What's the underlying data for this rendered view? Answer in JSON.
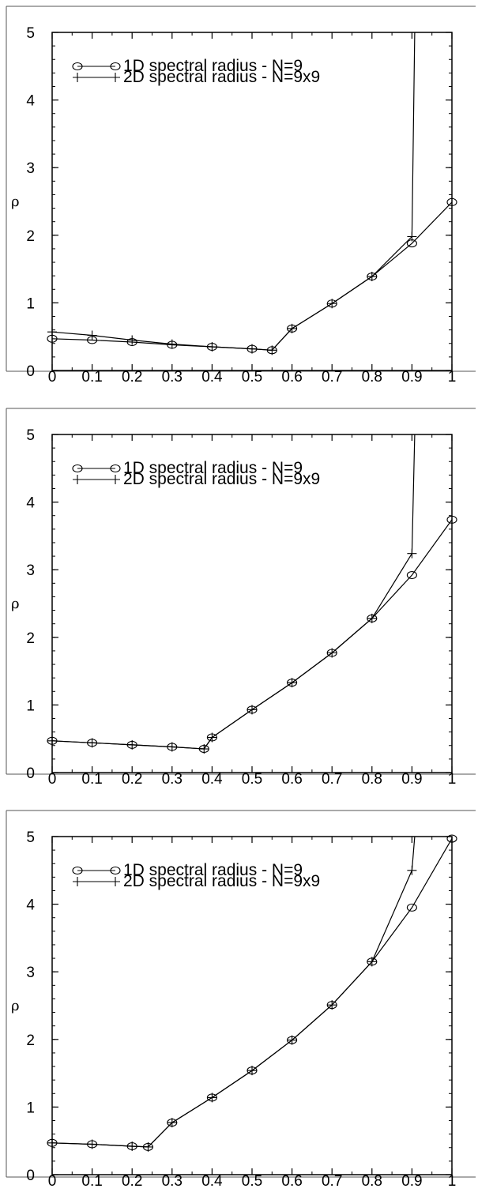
{
  "chart_data": [
    {
      "type": "line",
      "ylabel": "ρ",
      "xlim": [
        0,
        1
      ],
      "ylim": [
        0,
        5
      ],
      "xticks": [
        "0",
        "0.1",
        "0.2",
        "0.3",
        "0.4",
        "0.5",
        "0.6",
        "0.7",
        "0.8",
        "0.9",
        "1"
      ],
      "yticks": [
        "0",
        "1",
        "2",
        "3",
        "4",
        "5"
      ],
      "grid": false,
      "legend_position": "top-left",
      "series": [
        {
          "name": "1D spectral radius - N=9",
          "marker": "circle",
          "x": [
            0,
            0.1,
            0.2,
            0.3,
            0.4,
            0.5,
            0.55,
            0.6,
            0.7,
            0.8,
            0.9,
            1.0
          ],
          "y": [
            0.47,
            0.45,
            0.42,
            0.38,
            0.35,
            0.32,
            0.3,
            0.62,
            0.99,
            1.39,
            1.88,
            2.49
          ]
        },
        {
          "name": "2D spectral radius - N=9x9",
          "marker": "plus",
          "x": [
            0,
            0.1,
            0.2,
            0.3,
            0.4,
            0.5,
            0.55,
            0.6,
            0.7,
            0.8,
            0.9,
            0.907
          ],
          "y": [
            0.57,
            0.52,
            0.45,
            0.39,
            0.35,
            0.32,
            0.3,
            0.62,
            0.99,
            1.39,
            1.98,
            5.0
          ]
        }
      ]
    },
    {
      "type": "line",
      "ylabel": "ρ",
      "xlim": [
        0,
        1
      ],
      "ylim": [
        0,
        5
      ],
      "xticks": [
        "0",
        "0.1",
        "0.2",
        "0.3",
        "0.4",
        "0.5",
        "0.6",
        "0.7",
        "0.8",
        "0.9",
        "1"
      ],
      "yticks": [
        "0",
        "1",
        "2",
        "3",
        "4",
        "5"
      ],
      "grid": false,
      "legend_position": "top-left",
      "series": [
        {
          "name": "1D spectral radius - N=9",
          "marker": "circle",
          "x": [
            0,
            0.1,
            0.2,
            0.3,
            0.38,
            0.4,
            0.5,
            0.6,
            0.7,
            0.8,
            0.9,
            1.0
          ],
          "y": [
            0.47,
            0.44,
            0.41,
            0.38,
            0.35,
            0.52,
            0.93,
            1.33,
            1.77,
            2.28,
            2.92,
            3.74
          ]
        },
        {
          "name": "2D spectral radius - N=9x9",
          "marker": "plus",
          "x": [
            0,
            0.1,
            0.2,
            0.3,
            0.38,
            0.4,
            0.5,
            0.6,
            0.7,
            0.8,
            0.9,
            0.907
          ],
          "y": [
            0.47,
            0.44,
            0.41,
            0.38,
            0.35,
            0.52,
            0.93,
            1.33,
            1.77,
            2.28,
            3.24,
            5.0
          ]
        }
      ]
    },
    {
      "type": "line",
      "ylabel": "ρ",
      "xlim": [
        0,
        1
      ],
      "ylim": [
        0,
        5
      ],
      "xticks": [
        "0",
        "0.1",
        "0.2",
        "0.3",
        "0.4",
        "0.5",
        "0.6",
        "0.7",
        "0.8",
        "0.9",
        "1"
      ],
      "yticks": [
        "0",
        "1",
        "2",
        "3",
        "4",
        "5"
      ],
      "grid": false,
      "legend_position": "top-left",
      "series": [
        {
          "name": "1D spectral radius - N=9",
          "marker": "circle",
          "x": [
            0,
            0.1,
            0.2,
            0.24,
            0.3,
            0.4,
            0.5,
            0.6,
            0.7,
            0.8,
            0.9,
            1.0
          ],
          "y": [
            0.47,
            0.45,
            0.42,
            0.41,
            0.77,
            1.14,
            1.54,
            1.99,
            2.51,
            3.15,
            3.95,
            4.97
          ]
        },
        {
          "name": "2D spectral radius - N=9x9",
          "marker": "plus",
          "x": [
            0,
            0.1,
            0.2,
            0.24,
            0.3,
            0.4,
            0.5,
            0.6,
            0.7,
            0.8,
            0.9,
            0.907
          ],
          "y": [
            0.47,
            0.45,
            0.42,
            0.41,
            0.77,
            1.14,
            1.54,
            1.99,
            2.51,
            3.15,
            4.5,
            5.0
          ]
        }
      ]
    }
  ]
}
